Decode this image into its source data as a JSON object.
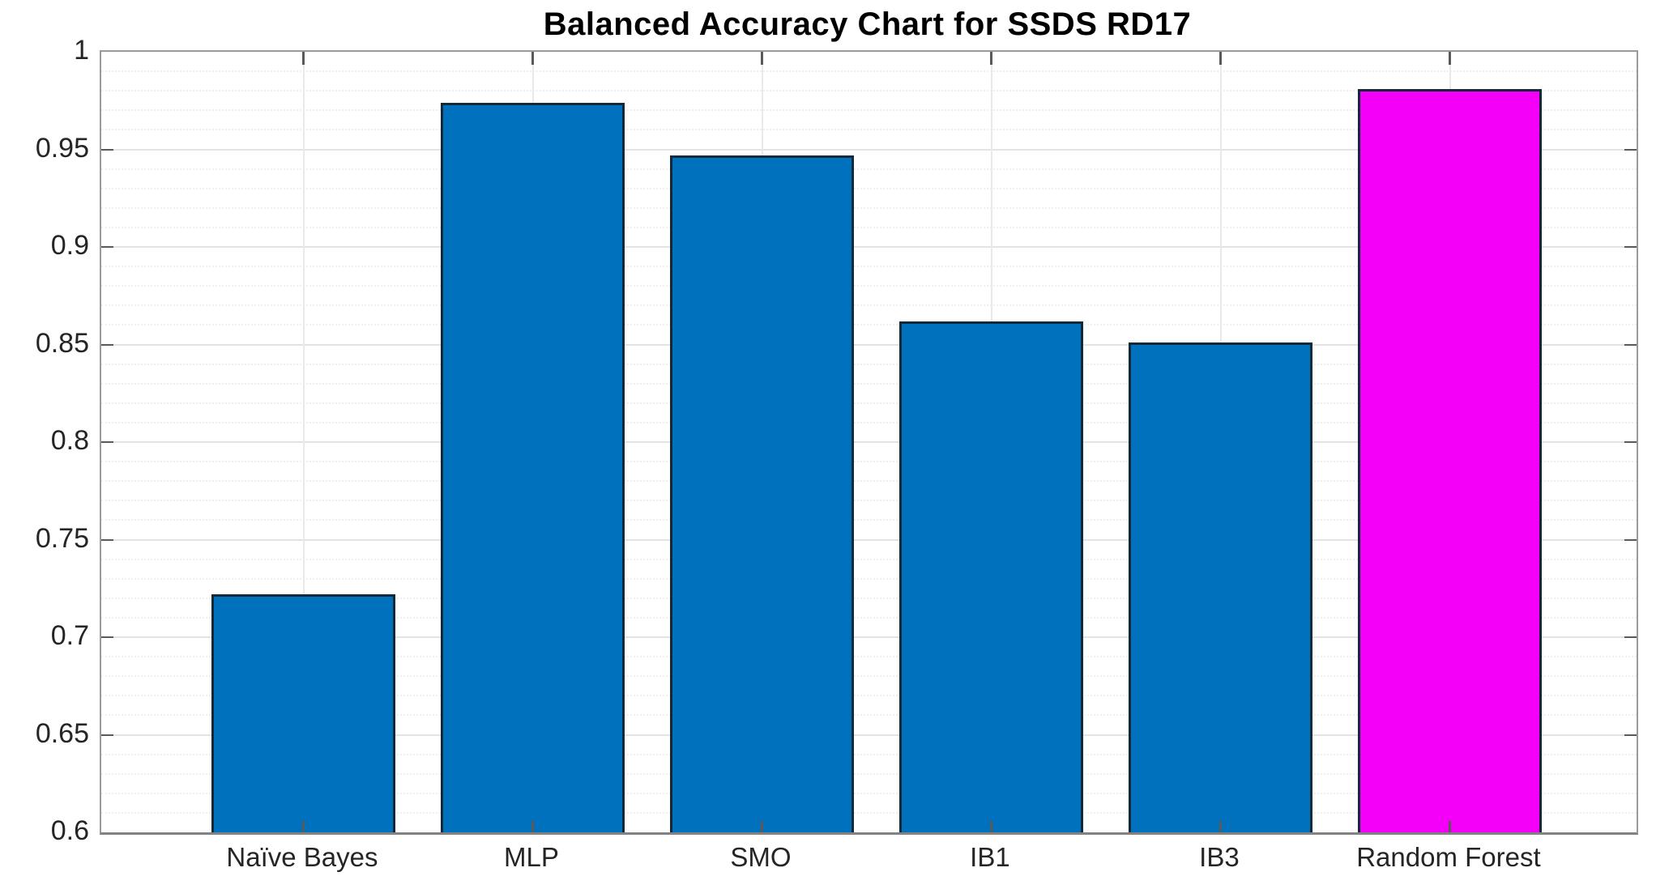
{
  "chart_data": {
    "type": "bar",
    "title": "Balanced Accuracy Chart for SSDS RD17",
    "categories": [
      "Naïve Bayes",
      "MLP",
      "SMO",
      "IB1",
      "IB3",
      "Random Forest"
    ],
    "values": [
      0.722,
      0.974,
      0.947,
      0.862,
      0.851,
      0.981
    ],
    "series_name": "Balanced Accuracy",
    "xlabel": "",
    "ylabel": "",
    "ylim": [
      0.6,
      1.0
    ],
    "ytick_values": [
      0.6,
      0.65,
      0.7,
      0.75,
      0.8,
      0.85,
      0.9,
      0.95,
      1.0
    ],
    "ytick_labels": [
      "0.6",
      "0.65",
      "0.7",
      "0.75",
      "0.8",
      "0.85",
      "0.9",
      "0.95",
      "1"
    ],
    "minor_tick_step": 0.01,
    "grid": {
      "horizontal_major": true,
      "horizontal_minor": true,
      "vertical_at_categories": true
    },
    "legend": "none",
    "bar_colors": [
      "#0072BD",
      "#0072BD",
      "#0072BD",
      "#0072BD",
      "#0072BD",
      "#F400F9"
    ],
    "default_bar_color": "#0072BD",
    "highlight_bar_color": "#F400F9",
    "bar_edge_color": "#12293A"
  }
}
